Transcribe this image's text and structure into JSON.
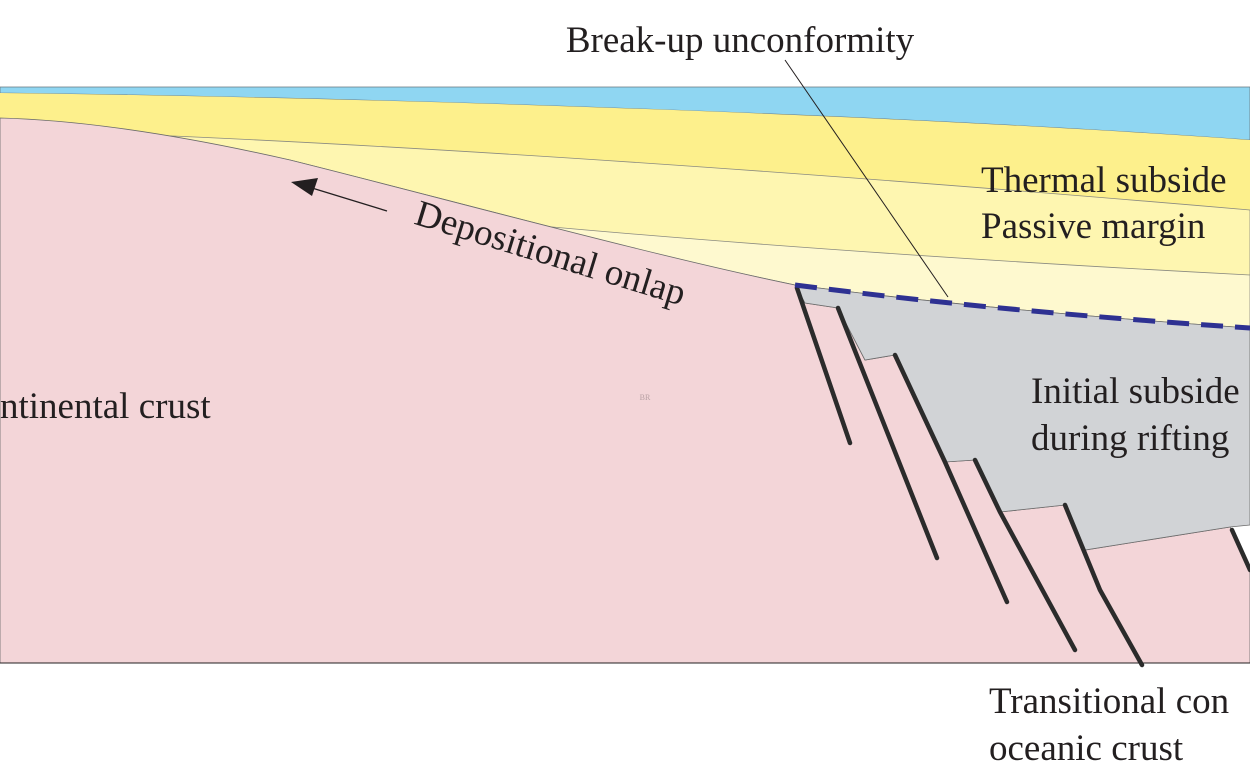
{
  "labels": [
    "Break-up unconformity",
    "Thermal subside",
    "Passive margin",
    "Depositional onlap",
    "ntinental crust",
    "Initial subside",
    "during rifting",
    "Transitional con",
    "oceanic crust",
    "BR"
  ]
}
